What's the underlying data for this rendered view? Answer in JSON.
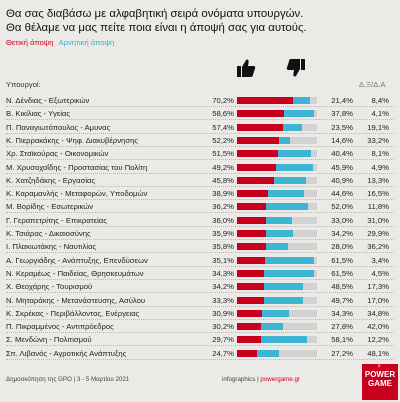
{
  "title_line1": "Θα σας διαβάσω με αλφαβητική σειρά ονόματα υπουργών.",
  "title_line2": "Θα θέλαμε να μας πείτε ποια είναι η άποψή σας για αυτούς.",
  "legend": {
    "positive": "Θετική άποψη",
    "negative": "Αρνητική άποψη"
  },
  "icons": {
    "positive": "thumbs-up-icon",
    "negative": "thumbs-down-icon"
  },
  "colors": {
    "positive": "#c8001e",
    "negative": "#3cb6d4",
    "remainder": "#d2d2d2",
    "background": "#eceae6"
  },
  "headers": {
    "ministers": "Υπουργοί:",
    "no_response": "Δ.Ξ/Δ.Α"
  },
  "footer": {
    "source": "Δημοσκόπηση της GPO | 3 - 5 Μαρτίου 2021",
    "credit": "infographics | ",
    "site": "powergame.gr"
  },
  "logo": {
    "line1": "POWER",
    "line2": "GAME"
  },
  "chart_data": {
    "type": "bar",
    "stacked": true,
    "unit": "%",
    "value_labels": true,
    "categories": [
      "Ν. Δένδιας - Εξωτερικών",
      "Β. Κικίλιας - Υγείας",
      "Π. Παναγιωτόπουλος - Αμυνας",
      "Κ. Πιερρακάκης - Ψηφ. Διακυβέρνησης",
      "Χρ. Σταϊκούρας - Οικονομικών",
      "Μ. Χρυσοχοΐδης - Προστασίας του Πολίτη",
      "Κ. Χατζηδάκης - Εργασίας",
      "Κ. Καραμανλής - Μεταφορών, Υποδομών",
      "Μ. Βορίδης - Εσωτερικών",
      "Γ. Γεραπετρίτης - Επικρατείας",
      "Κ. Τσιάρας - Δικαιοσύνης",
      "Ι. Πλακιωτάκης - Ναυτιλίας",
      "Α. Γεωργιάδης - Ανάπτυξης, Επενδύσεων",
      "Ν. Κεραμέως - Παιδείας, Θρησκευμάτων",
      "Χ. Θεοχάρης - Τουρισμού",
      "Ν. Μηταράκης - Μετανάστευσης, Ασύλου",
      "Κ. Σκρέκας - Περιβάλλοντος, Ενέργειας",
      "Π. Πικραμμένος - Αντιπρόεδρος",
      "Σ. Μενδώνη - Πολιτισμού",
      "Σπ. Λιβανός - Αγροτικής Ανάπτυξης"
    ],
    "series": [
      {
        "name": "Θετική άποψη",
        "values": [
          70.2,
          58.6,
          57.4,
          52.2,
          51.5,
          49.2,
          45.8,
          38.9,
          36.2,
          36.0,
          35.9,
          35.8,
          35.1,
          34.3,
          34.2,
          33.3,
          30.9,
          30.2,
          29.7,
          24.7
        ]
      },
      {
        "name": "Αρνητική άποψη",
        "values": [
          21.4,
          37.8,
          23.5,
          14.6,
          40.4,
          45.9,
          40.9,
          44.6,
          52.0,
          33.0,
          34.2,
          28.0,
          61.5,
          61.5,
          48.5,
          49.7,
          34.3,
          27.8,
          58.1,
          27.2
        ]
      },
      {
        "name": "Δ.Ξ/Δ.Α",
        "values": [
          8.4,
          4.1,
          19.1,
          33.2,
          8.1,
          4.9,
          13.3,
          16.5,
          11.8,
          31.0,
          29.9,
          36.2,
          3.4,
          4.5,
          17.3,
          17.0,
          34.8,
          42.0,
          12.2,
          48.1
        ]
      }
    ],
    "xlim": [
      0,
      100
    ]
  }
}
